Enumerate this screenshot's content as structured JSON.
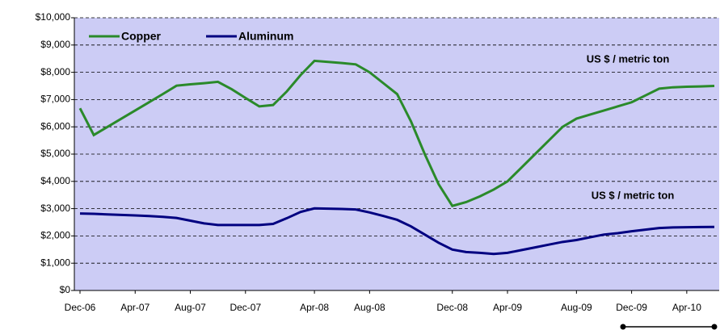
{
  "chart_data": {
    "type": "line",
    "categories": [
      "Dec-06",
      null,
      null,
      null,
      "Apr-07",
      null,
      null,
      null,
      "Aug-07",
      null,
      null,
      null,
      "Dec-07",
      null,
      null,
      null,
      null,
      "Apr-08",
      null,
      null,
      null,
      "Aug-08",
      null,
      null,
      null,
      null,
      null,
      "Dec-08",
      null,
      null,
      null,
      "Apr-09",
      null,
      null,
      null,
      null,
      "Aug-09",
      null,
      null,
      null,
      "Dec-09",
      null,
      null,
      null,
      "Apr-10",
      null,
      null
    ],
    "series": [
      {
        "name": "Copper",
        "color": "#2a8a2a",
        "values": [
          6680,
          5700,
          6000,
          6300,
          6600,
          6900,
          7200,
          7510,
          7560,
          7600,
          7650,
          7380,
          7060,
          6750,
          6800,
          7300,
          7900,
          8420,
          8380,
          8340,
          8290,
          8000,
          7600,
          7200,
          6200,
          5000,
          3900,
          3100,
          3240,
          3450,
          3700,
          4000,
          4500,
          5000,
          5500,
          6000,
          6300,
          6450,
          6600,
          6750,
          6900,
          7150,
          7400,
          7450,
          7470,
          7480,
          7500
        ]
      },
      {
        "name": "Aluminum",
        "color": "#000080",
        "values": [
          2820,
          2810,
          2790,
          2770,
          2750,
          2730,
          2700,
          2660,
          2560,
          2460,
          2400,
          2400,
          2400,
          2400,
          2440,
          2650,
          2880,
          3010,
          3000,
          2990,
          2970,
          2860,
          2730,
          2590,
          2350,
          2050,
          1750,
          1500,
          1410,
          1380,
          1340,
          1380,
          1480,
          1580,
          1680,
          1780,
          1850,
          1950,
          2050,
          2100,
          2170,
          2230,
          2290,
          2310,
          2320,
          2325,
          2330
        ]
      }
    ],
    "annotations": [
      "US $ / metric ton",
      "US $ / metric ton"
    ],
    "ylim": [
      0,
      10000
    ],
    "yticks": [
      {
        "value": 0,
        "label": "$0"
      },
      {
        "value": 1000,
        "label": "$1,000"
      },
      {
        "value": 2000,
        "label": "$2,000"
      },
      {
        "value": 3000,
        "label": "$3,000"
      },
      {
        "value": 4000,
        "label": "$4,000"
      },
      {
        "value": 5000,
        "label": "$5,000"
      },
      {
        "value": 6000,
        "label": "$6,000"
      },
      {
        "value": 7000,
        "label": "$7,000"
      },
      {
        "value": 8000,
        "label": "$8,000"
      },
      {
        "value": 9000,
        "label": "$9,000"
      },
      {
        "value": 10000,
        "label": "$10,000"
      }
    ],
    "grid": true,
    "background": "#ccccf5"
  }
}
